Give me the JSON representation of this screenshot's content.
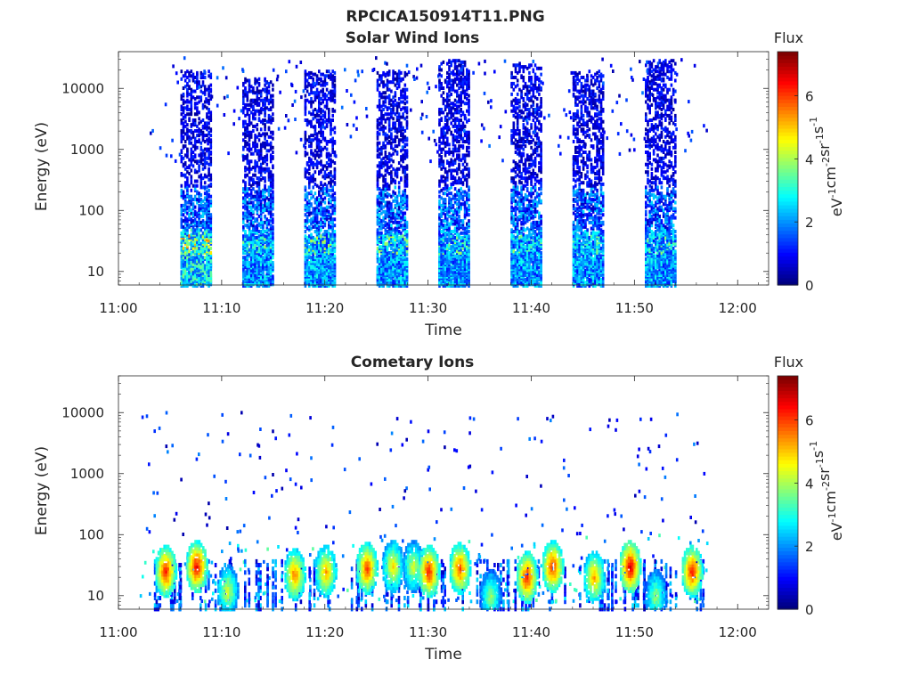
{
  "figure_title": "RPCICA150914T11.PNG",
  "chart_data": [
    {
      "type": "heatmap",
      "title": "Solar Wind Ions",
      "xlabel": "Time",
      "ylabel": "Energy (eV)",
      "x_ticks": [
        "11:00",
        "11:10",
        "11:20",
        "11:30",
        "11:40",
        "11:50",
        "12:00"
      ],
      "y_ticks": [
        "10",
        "100",
        "1000",
        "10000"
      ],
      "y_scale": "log",
      "ylim": [
        6,
        40000
      ],
      "xlim": [
        "11:00",
        "12:03"
      ],
      "colorbar": {
        "title": "Flux",
        "label": "eV-1cm-2sr-1s-1",
        "ticks": [
          "0",
          "2",
          "4",
          "6"
        ],
        "range": [
          0,
          7.4
        ]
      },
      "bursts": [
        {
          "start": "11:06",
          "end": "11:09",
          "flux_low": 2.5,
          "flux_high_core": 4.5,
          "emax": 20000
        },
        {
          "start": "11:12",
          "end": "11:15",
          "flux_low": 2.0,
          "flux_high_core": 3.0,
          "emax": 15000
        },
        {
          "start": "11:18",
          "end": "11:21",
          "flux_low": 2.0,
          "flux_high_core": 3.5,
          "emax": 20000
        },
        {
          "start": "11:25",
          "end": "11:28",
          "flux_low": 2.0,
          "flux_high_core": 3.5,
          "emax": 20000
        },
        {
          "start": "11:31",
          "end": "11:34",
          "flux_low": 2.0,
          "flux_high_core": 3.0,
          "emax": 30000
        },
        {
          "start": "11:38",
          "end": "11:41",
          "flux_low": 2.0,
          "flux_high_core": 3.0,
          "emax": 25000
        },
        {
          "start": "11:44",
          "end": "11:47",
          "flux_low": 2.0,
          "flux_high_core": 3.0,
          "emax": 20000
        },
        {
          "start": "11:51",
          "end": "11:54",
          "flux_low": 2.0,
          "flux_high_core": 3.0,
          "emax": 30000
        }
      ]
    },
    {
      "type": "heatmap",
      "title": "Cometary Ions",
      "xlabel": "Time",
      "ylabel": "Energy (eV)",
      "x_ticks": [
        "11:00",
        "11:10",
        "11:20",
        "11:30",
        "11:40",
        "11:50",
        "12:00"
      ],
      "y_ticks": [
        "10",
        "100",
        "1000",
        "10000"
      ],
      "y_scale": "log",
      "ylim": [
        6,
        40000
      ],
      "xlim": [
        "11:00",
        "12:03"
      ],
      "colorbar": {
        "title": "Flux",
        "label": "eV-1cm-2sr-1s-1",
        "ticks": [
          "0",
          "2",
          "4",
          "6"
        ],
        "range": [
          0,
          7.4
        ]
      },
      "peaks": [
        {
          "time": "11:04.5",
          "energy_center": 25,
          "flux": 6.5
        },
        {
          "time": "11:07.5",
          "energy_center": 30,
          "flux": 6.8
        },
        {
          "time": "11:10.5",
          "energy_center": 12,
          "flux": 4.5
        },
        {
          "time": "11:17",
          "energy_center": 22,
          "flux": 5.8
        },
        {
          "time": "11:20",
          "energy_center": 25,
          "flux": 5.5
        },
        {
          "time": "11:24",
          "energy_center": 28,
          "flux": 6.2
        },
        {
          "time": "11:26.5",
          "energy_center": 30,
          "flux": 5.0
        },
        {
          "time": "11:28.5",
          "energy_center": 30,
          "flux": 4.5
        },
        {
          "time": "11:30",
          "energy_center": 25,
          "flux": 6.5
        },
        {
          "time": "11:33",
          "energy_center": 28,
          "flux": 6.2
        },
        {
          "time": "11:36",
          "energy_center": 10,
          "flux": 4.0
        },
        {
          "time": "11:39.5",
          "energy_center": 20,
          "flux": 6.5
        },
        {
          "time": "11:42",
          "energy_center": 30,
          "flux": 6.5
        },
        {
          "time": "11:46",
          "energy_center": 20,
          "flux": 5.5
        },
        {
          "time": "11:49.5",
          "energy_center": 30,
          "flux": 7.0
        },
        {
          "time": "11:52",
          "energy_center": 10,
          "flux": 4.0
        },
        {
          "time": "11:55.5",
          "energy_center": 25,
          "flux": 6.5
        }
      ]
    }
  ]
}
